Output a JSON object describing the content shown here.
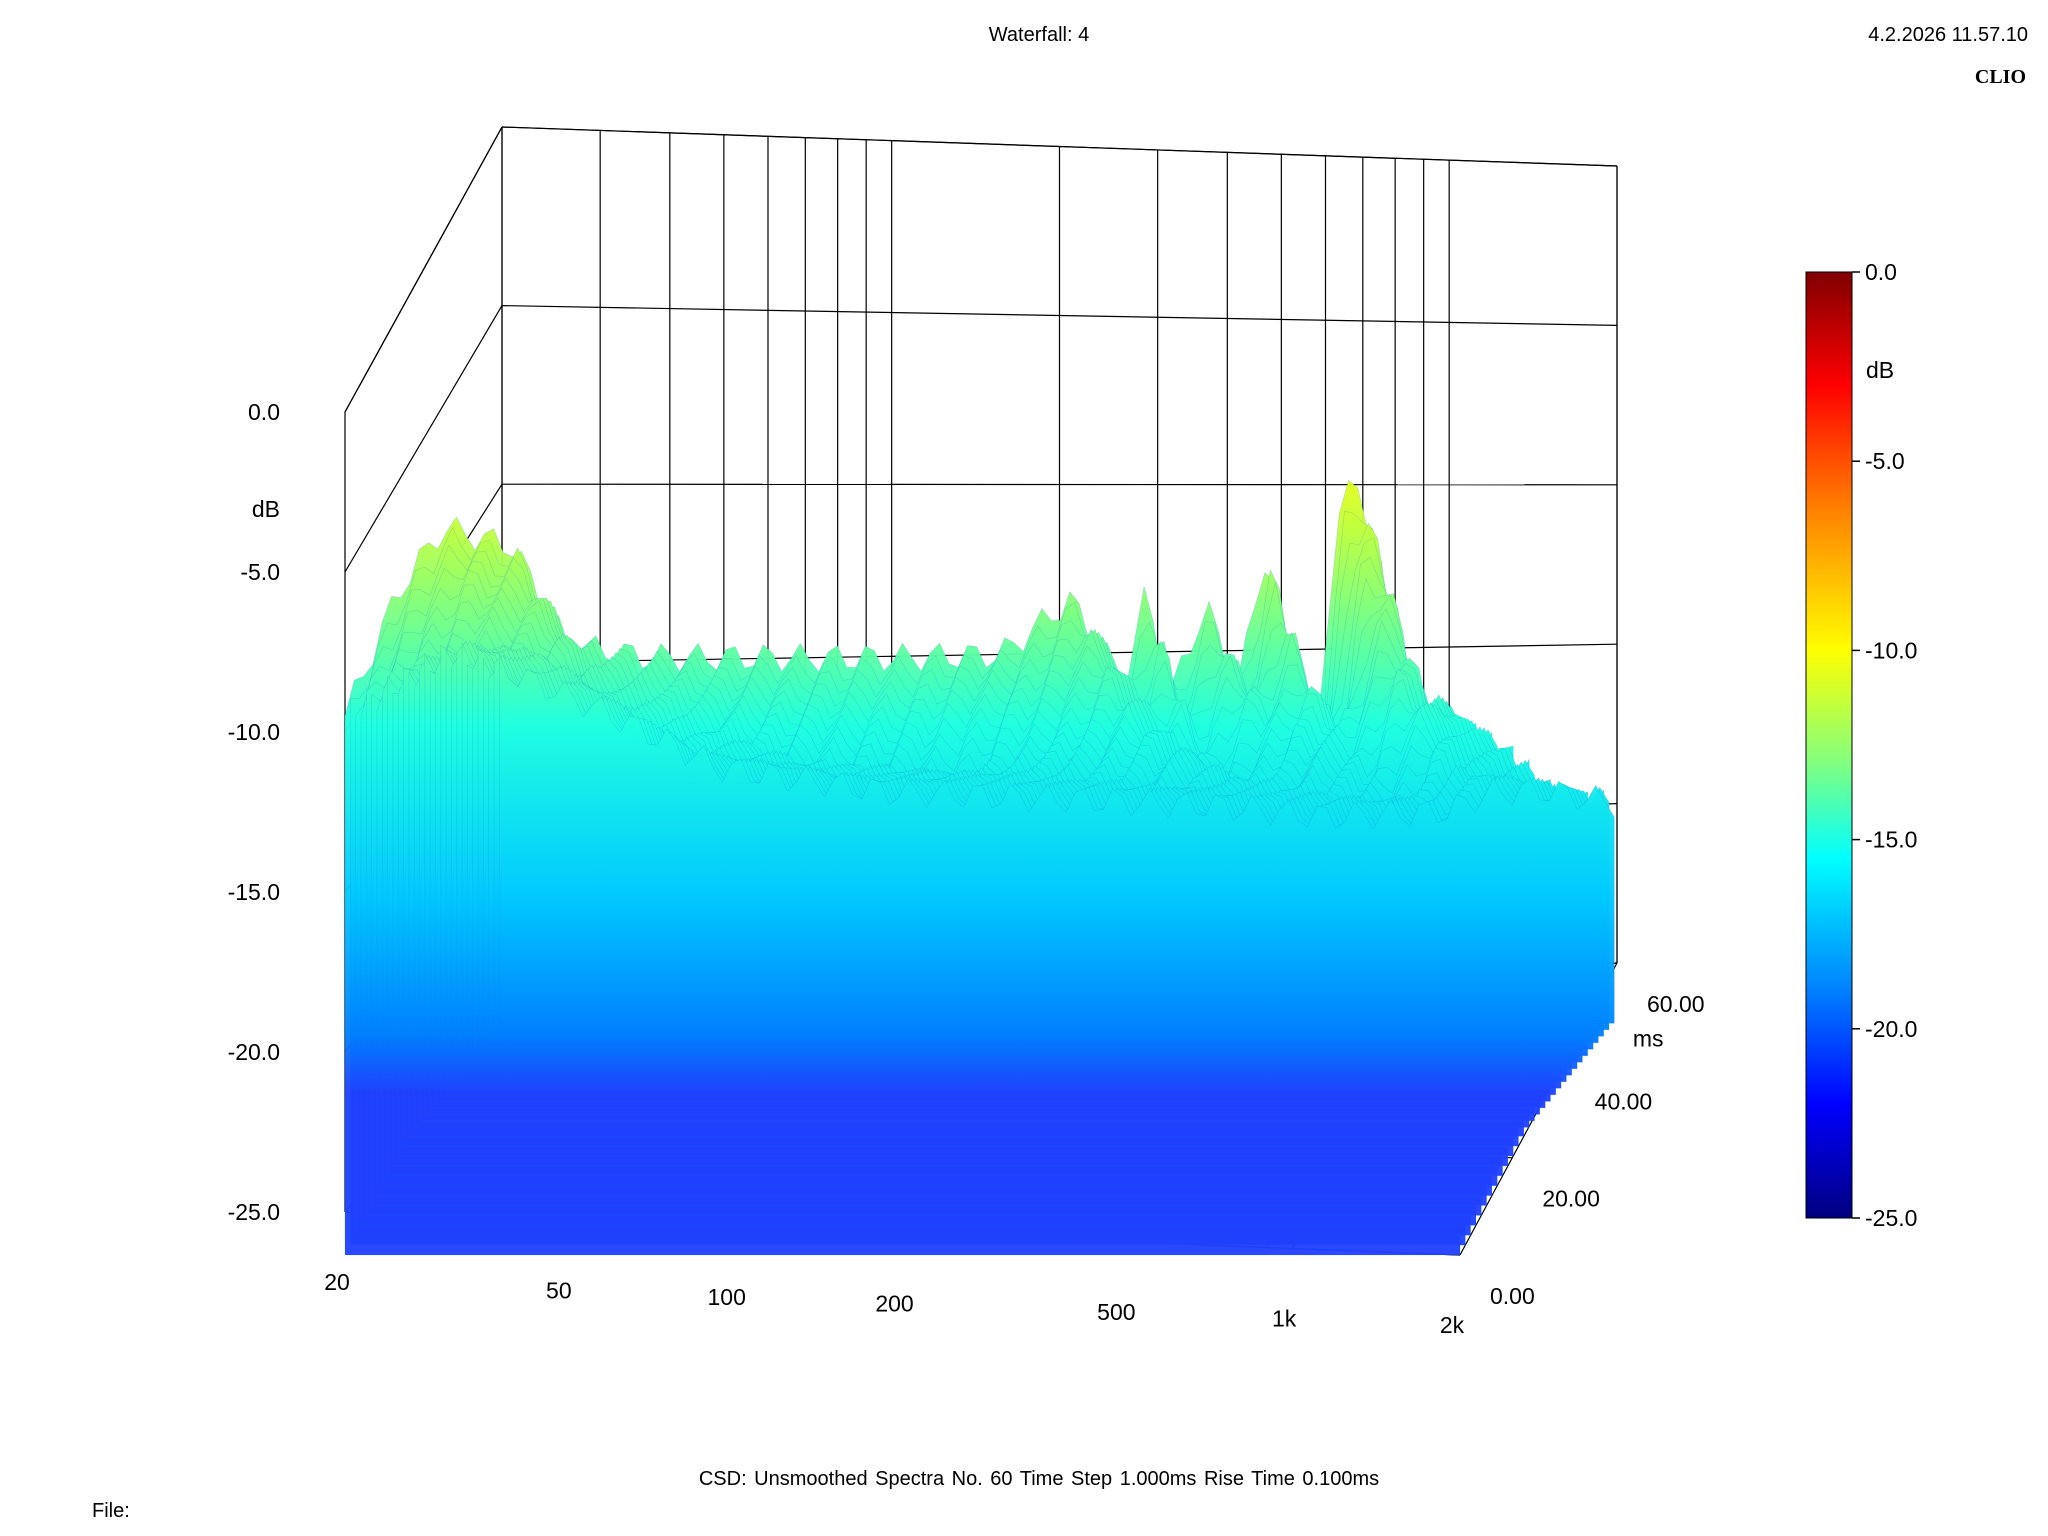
{
  "header": {
    "title": "Waterfall: 4",
    "datetime": "4.2.2026 11.57.10",
    "brand": "CLIO"
  },
  "footer": {
    "settings": "CSD:   Unsmoothed   Spectra No. 60   Time Step 1.000ms   Rise Time 0.100ms",
    "file_label": "File:"
  },
  "chart_data": {
    "type": "waterfall",
    "title": "Waterfall: 4",
    "analysis": "CSD",
    "smoothing": "Unsmoothed",
    "spectra_count": 60,
    "time_step": "1.000ms",
    "rise_time": "0.100ms",
    "x_axis": {
      "scale": "log",
      "range": [
        20,
        2000
      ],
      "tick_values": [
        20,
        50,
        100,
        200,
        500,
        1000,
        2000
      ],
      "tick_labels": [
        "20",
        "50",
        "100",
        "200",
        "500",
        "1k",
        "2k"
      ],
      "gridlines": [
        20,
        30,
        40,
        50,
        60,
        70,
        80,
        90,
        100,
        200,
        300,
        400,
        500,
        600,
        700,
        800,
        900,
        1000,
        2000
      ]
    },
    "y_axis": {
      "label": "dB",
      "range": [
        -25,
        0
      ],
      "tick_values": [
        0,
        -5,
        -10,
        -15,
        -20,
        -25
      ],
      "tick_labels": [
        "0.0",
        "-5.0",
        "-10.0",
        "-15.0",
        "-20.0",
        "-25.0"
      ]
    },
    "z_axis": {
      "label": "ms",
      "range": [
        0,
        60
      ],
      "tick_values": [
        0,
        20,
        40,
        60
      ],
      "tick_labels": [
        "0.00",
        "20.00",
        "40.00",
        "60.00"
      ]
    },
    "colorbar": {
      "label": "dB",
      "range": [
        -25,
        0
      ],
      "tick_values": [
        0,
        -5,
        -10,
        -15,
        -20,
        -25
      ],
      "tick_labels": [
        "0.0",
        "-5.0",
        "-10.0",
        "-15.0",
        "-20.0",
        "-25.0"
      ],
      "colormap": [
        "#800000",
        "#ff0000",
        "#ff8000",
        "#ffff00",
        "#80ff80",
        "#00ffff",
        "#0080ff",
        "#0000ff",
        "#000080"
      ]
    },
    "series": [
      {
        "time_ms": 0,
        "frequency_hz": [
          20,
          25,
          30,
          40,
          50,
          70,
          100,
          150,
          200,
          300,
          400,
          500,
          550,
          600,
          700,
          800,
          900,
          1000,
          1100,
          1200,
          1300,
          1400,
          1500,
          1700,
          2000
        ],
        "level_db": [
          -9.5,
          -5.5,
          -3.5,
          -4.0,
          -7.0,
          -7.3,
          -7.2,
          -7.1,
          -7.0,
          -6.8,
          -5.0,
          -7.5,
          -4.5,
          -8.0,
          -5.0,
          -7.5,
          -3.2,
          -7.0,
          -10.0,
          -2.0,
          -1.0,
          -2.5,
          -8.0,
          -7.5,
          -8.5
        ]
      },
      {
        "time_ms": 20,
        "frequency_hz": [
          20,
          30,
          50,
          100,
          200,
          400,
          600,
          800,
          1000,
          1200,
          1500,
          2000
        ],
        "level_db": [
          -10.5,
          -9.5,
          -11.0,
          -13.0,
          -13.5,
          -11.0,
          -13.5,
          -11.5,
          -12.0,
          -9.5,
          -11.5,
          -12.5
        ]
      },
      {
        "time_ms": 40,
        "frequency_hz": [
          20,
          30,
          50,
          100,
          200,
          400,
          600,
          800,
          1000,
          1200,
          1500,
          2000
        ],
        "level_db": [
          -11.5,
          -12.0,
          -15.0,
          -16.0,
          -16.0,
          -16.5,
          -16.5,
          -17.0,
          -17.0,
          -16.0,
          -16.5,
          -17.0
        ]
      },
      {
        "time_ms": 60,
        "frequency_hz": [
          20,
          30,
          50,
          100,
          200,
          400,
          600,
          800,
          1000,
          1200,
          1500,
          2000
        ],
        "level_db": [
          -14.0,
          -15.5,
          -17.5,
          -18.5,
          -19.0,
          -19.5,
          -20.0,
          -20.0,
          -20.0,
          -19.5,
          -19.5,
          -20.0
        ]
      }
    ]
  }
}
